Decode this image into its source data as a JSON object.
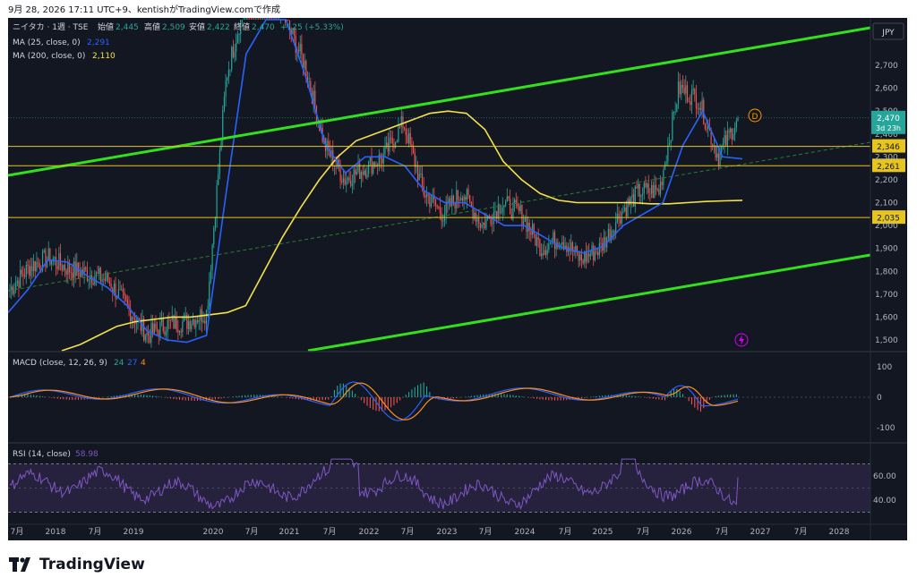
{
  "header": {
    "caption": "9月 28, 2026 17:11 UTC+9、kentishがTradingView.comで作成",
    "symbol": "ニイタカ · 1週 · TSE",
    "ohlc": [
      {
        "label": "始値",
        "value": "2,445"
      },
      {
        "label": "高値",
        "value": "2,509"
      },
      {
        "label": "安値",
        "value": "2,422"
      },
      {
        "label": "終値",
        "value": "2,470"
      }
    ],
    "change": "+125 (+5.33%)",
    "ma25_label": "MA (25, close, 0)",
    "ma25_value": "2,291",
    "ma200_label": "MA (200, close, 0)",
    "ma200_value": "2,110",
    "currency": "JPY",
    "last_price": "2,470",
    "countdown": "3d 23h",
    "dividend_marker": "D"
  },
  "price_axis": {
    "ticks": [
      "2,700",
      "2,600",
      "2,500",
      "2,400",
      "2,300",
      "2,200",
      "2,100",
      "2,000",
      "1,900",
      "1,800",
      "1,700",
      "1,600",
      "1,500"
    ],
    "levels": [
      "2,346",
      "2,261",
      "2,035"
    ]
  },
  "macd": {
    "label": "MACD (close, 12, 26, 9)",
    "v1": "24",
    "v2": "27",
    "v3": "4",
    "ticks": [
      "100",
      "0",
      "-100"
    ]
  },
  "rsi": {
    "label": "RSI (14, close)",
    "value": "58.98",
    "ticks": [
      "60.00",
      "40.00"
    ]
  },
  "time_axis": [
    "7月",
    "2018",
    "7月",
    "2019",
    "2020",
    "7月",
    "2021",
    "7月",
    "2022",
    "7月",
    "2023",
    "7月",
    "2024",
    "7月",
    "2025",
    "7月",
    "2026",
    "7月",
    "2027",
    "7月",
    "2028"
  ],
  "brand": "TradingView",
  "colors": {
    "bg": "#131722",
    "up": "#26a69a",
    "down": "#ef5350",
    "ma25": "#2962ff",
    "ma200": "#f5e14a",
    "channel": "#32e01e",
    "level": "#e6c51e",
    "rsi": "#7e57c2",
    "macd_signal": "#ff8f1f"
  },
  "chart_data": {
    "type": "candlestick",
    "x": [
      "2017-06",
      "2017-09",
      "2017-12",
      "2018-03",
      "2018-06",
      "2018-09",
      "2018-12",
      "2019-03",
      "2019-06",
      "2019-09",
      "2019-12",
      "2020-03",
      "2020-06",
      "2020-09",
      "2020-12",
      "2021-03",
      "2021-06",
      "2021-09",
      "2021-12",
      "2022-03",
      "2022-06",
      "2022-09",
      "2022-12",
      "2023-03",
      "2023-06",
      "2023-09",
      "2023-12",
      "2024-03",
      "2024-06",
      "2024-09",
      "2024-12",
      "2025-03",
      "2025-06",
      "2025-09",
      "2025-12",
      "2026-03",
      "2026-06",
      "2026-09"
    ],
    "close": [
      1720,
      1820,
      1860,
      1810,
      1790,
      1760,
      1640,
      1520,
      1570,
      1580,
      1620,
      2650,
      3000,
      3100,
      2900,
      2700,
      2350,
      2200,
      2250,
      2300,
      2450,
      2150,
      2050,
      2150,
      2000,
      2100,
      2050,
      1900,
      1950,
      1850,
      1900,
      2050,
      2150,
      2150,
      2600,
      2550,
      2300,
      2470
    ],
    "ma25_close": [
      1620,
      1720,
      1850,
      1840,
      1780,
      1730,
      1650,
      1540,
      1500,
      1490,
      1520,
      2150,
      2750,
      3100,
      3000,
      2650,
      2350,
      2230,
      2300,
      2300,
      2260,
      2150,
      2100,
      2100,
      2050,
      2000,
      2000,
      1950,
      1900,
      1880,
      1910,
      2000,
      2050,
      2100,
      2350,
      2500,
      2300,
      2291
    ],
    "ma200_close": [
      1450,
      1480,
      1520,
      1560,
      1580,
      1590,
      1600,
      1600,
      1610,
      1620,
      1650,
      1800,
      1950,
      2080,
      2200,
      2300,
      2370,
      2400,
      2430,
      2460,
      2490,
      2500,
      2490,
      2420,
      2280,
      2200,
      2140,
      2110,
      2100,
      2100,
      2100,
      2100,
      2095,
      2095,
      2100,
      2105,
      2108,
      2110
    ],
    "horizontal_levels": [
      2346,
      2261,
      2035
    ],
    "macd_ticks": [
      100,
      0,
      -100
    ],
    "rsi_ticks": [
      60,
      40
    ],
    "last": 2470,
    "ylim": [
      1450,
      2780
    ],
    "grid": false
  }
}
